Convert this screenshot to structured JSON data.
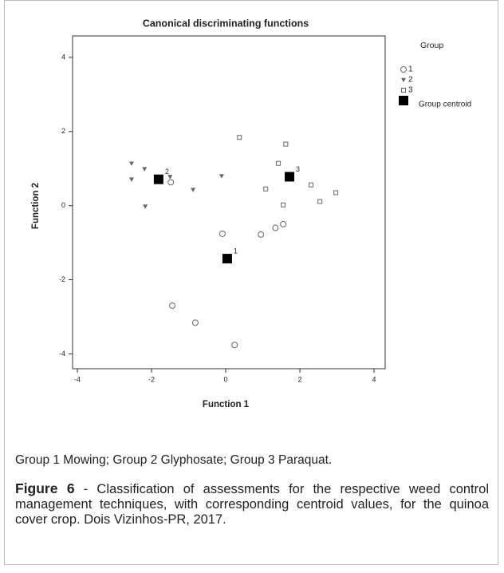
{
  "chart_data": {
    "type": "scatter",
    "title": "Canonical discriminating functions",
    "xlabel": "Function 1",
    "ylabel": "Function 2",
    "xlim": [
      -4.13,
      4.3
    ],
    "ylim": [
      -4.4,
      4.58
    ],
    "xticks": [
      -4,
      -2,
      0,
      2,
      4
    ],
    "yticks": [
      -4,
      -2,
      0,
      2,
      4
    ],
    "legend_title": "Group",
    "legend": "upper right outside",
    "series": [
      {
        "name": "1",
        "marker": "circle",
        "color": "#666666",
        "x": [
          -0.09,
          0.95,
          1.34,
          1.55,
          -1.44,
          -0.82,
          0.24,
          -1.48
        ],
        "values": [
          -0.76,
          -0.78,
          -0.6,
          -0.5,
          -2.7,
          -3.16,
          -3.76,
          0.63
        ]
      },
      {
        "name": "2",
        "marker": "triangle",
        "color": "#666666",
        "x": [
          -2.54,
          -2.54,
          -2.19,
          -2.17,
          -1.5,
          -0.88,
          -0.11
        ],
        "values": [
          1.14,
          0.71,
          0.99,
          -0.02,
          0.78,
          0.43,
          0.8
        ]
      },
      {
        "name": "3",
        "marker": "square",
        "color": "#666666",
        "x": [
          0.37,
          1.62,
          1.42,
          1.08,
          1.55,
          2.3,
          2.54,
          2.97
        ],
        "values": [
          1.84,
          1.66,
          1.14,
          0.45,
          0.02,
          0.56,
          0.11,
          0.35
        ]
      },
      {
        "name": "Group centroid",
        "marker": "filled-square",
        "color": "#000000",
        "x": [
          0.04,
          -1.81,
          1.72
        ],
        "values": [
          -1.43,
          0.71,
          0.78
        ],
        "point_labels": [
          "1",
          "2",
          "3"
        ]
      }
    ]
  },
  "caption": {
    "note": "Group 1 Mowing; Group 2 Glyphosate; Group 3 Paraquat.",
    "label": "Figure 6",
    "text": " - Classification of assessments for the respective weed control management techniques, with corresponding centroid values, for the quinoa cover crop. Dois Vizinhos-PR, 2017."
  }
}
